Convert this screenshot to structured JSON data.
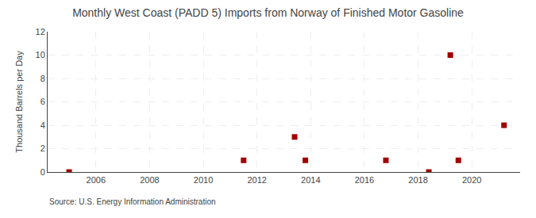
{
  "chart_data": {
    "type": "scatter",
    "title": "Monthly West Coast (PADD 5) Imports from Norway of Finished Motor Gasoline",
    "ylabel": "Thousand Barrels per Day",
    "source": "Source: U.S. Energy Information Administration",
    "x": [
      2005.0,
      2011.5,
      2013.4,
      2013.8,
      2016.8,
      2018.4,
      2019.2,
      2019.5,
      2021.2
    ],
    "values": [
      0.0,
      1.0,
      3.0,
      1.0,
      1.0,
      0.0,
      10.0,
      1.0,
      4.0
    ],
    "color": "#a00000",
    "marker": "square",
    "xlim": [
      2004.2,
      2021.8
    ],
    "ylim": [
      0,
      12
    ],
    "xticks": [
      2006,
      2008,
      2010,
      2012,
      2014,
      2016,
      2018,
      2020
    ],
    "yticks": [
      0,
      2,
      4,
      6,
      8,
      10,
      12
    ],
    "grid": true
  }
}
